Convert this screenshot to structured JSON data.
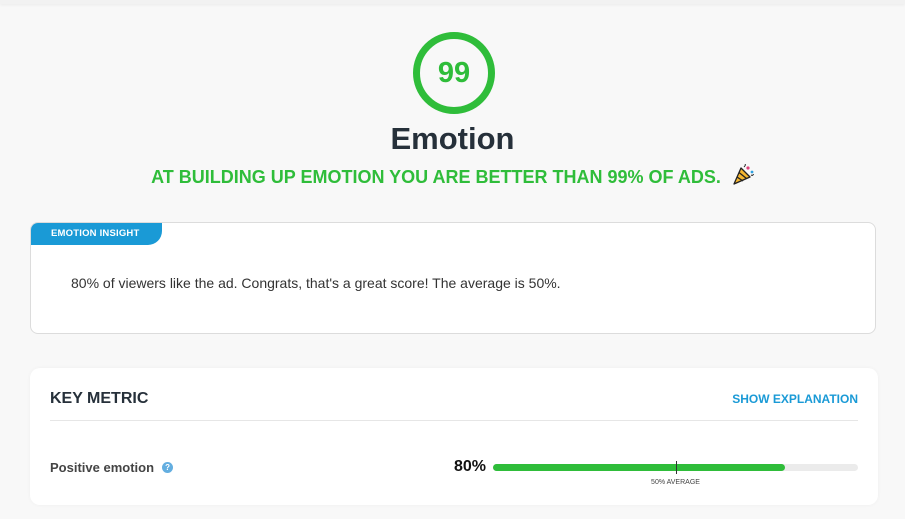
{
  "score": {
    "value": "99",
    "color": "#2fbd3a"
  },
  "header": {
    "title": "Emotion",
    "subtitle": "AT BUILDING UP EMOTION YOU ARE BETTER THAN 99% OF ADS.",
    "subtitle_icon": "party-popper-icon"
  },
  "insight": {
    "tag": "EMOTION INSIGHT",
    "text": "80% of viewers like the ad. Congrats, that's a great score! The average is 50%.",
    "tag_color": "#1a9ad6"
  },
  "key_metric": {
    "title": "KEY METRIC",
    "show_explanation_label": "SHOW EXPLANATION",
    "metrics": [
      {
        "label": "Positive emotion",
        "help_icon": "help-icon",
        "value_label": "80%",
        "value": 80,
        "average": 50,
        "average_label": "50% AVERAGE",
        "bar_color": "#2fbd3a"
      }
    ]
  }
}
